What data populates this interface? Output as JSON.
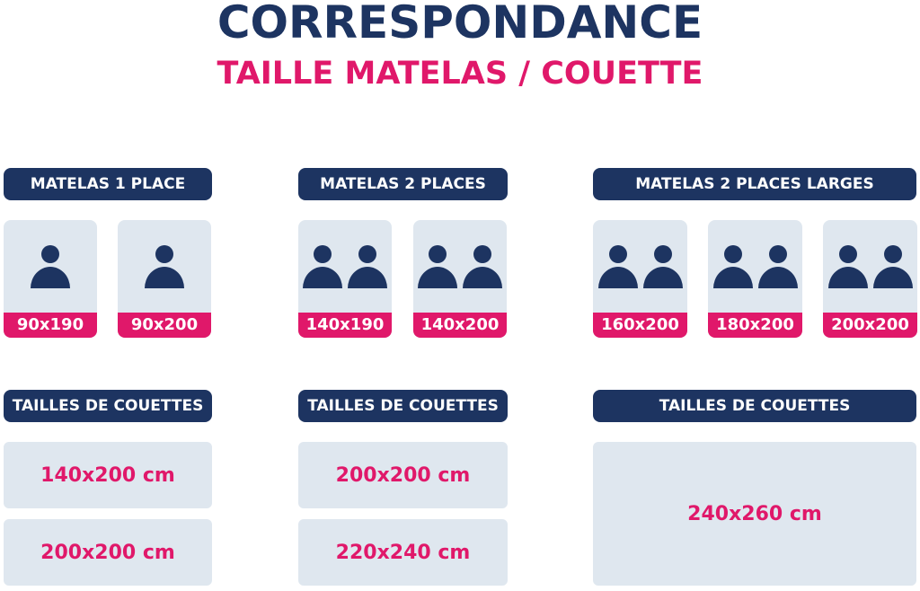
{
  "title": "CORRESPONDANCE",
  "subtitle": "TAILLE MATELAS / COUETTE",
  "colors": {
    "navy": "#1d3461",
    "pink": "#e0186a",
    "light": "#dfe7ef"
  },
  "columns": [
    {
      "header": "MATELAS 1 PLACE",
      "persons": 1,
      "sizes": [
        "90x190",
        "90x200"
      ],
      "couette_header": "TAILLES DE COUETTES",
      "couettes": [
        "140x200 cm",
        "200x200 cm"
      ]
    },
    {
      "header": "MATELAS 2 PLACES",
      "persons": 2,
      "sizes": [
        "140x190",
        "140x200"
      ],
      "couette_header": "TAILLES DE COUETTES",
      "couettes": [
        "200x200 cm",
        "220x240 cm"
      ]
    },
    {
      "header": "MATELAS 2 PLACES LARGES",
      "persons": 2,
      "sizes": [
        "160x200",
        "180x200",
        "200x200"
      ],
      "couette_header": "TAILLES DE COUETTES",
      "couettes": [
        "240x260 cm"
      ]
    }
  ]
}
